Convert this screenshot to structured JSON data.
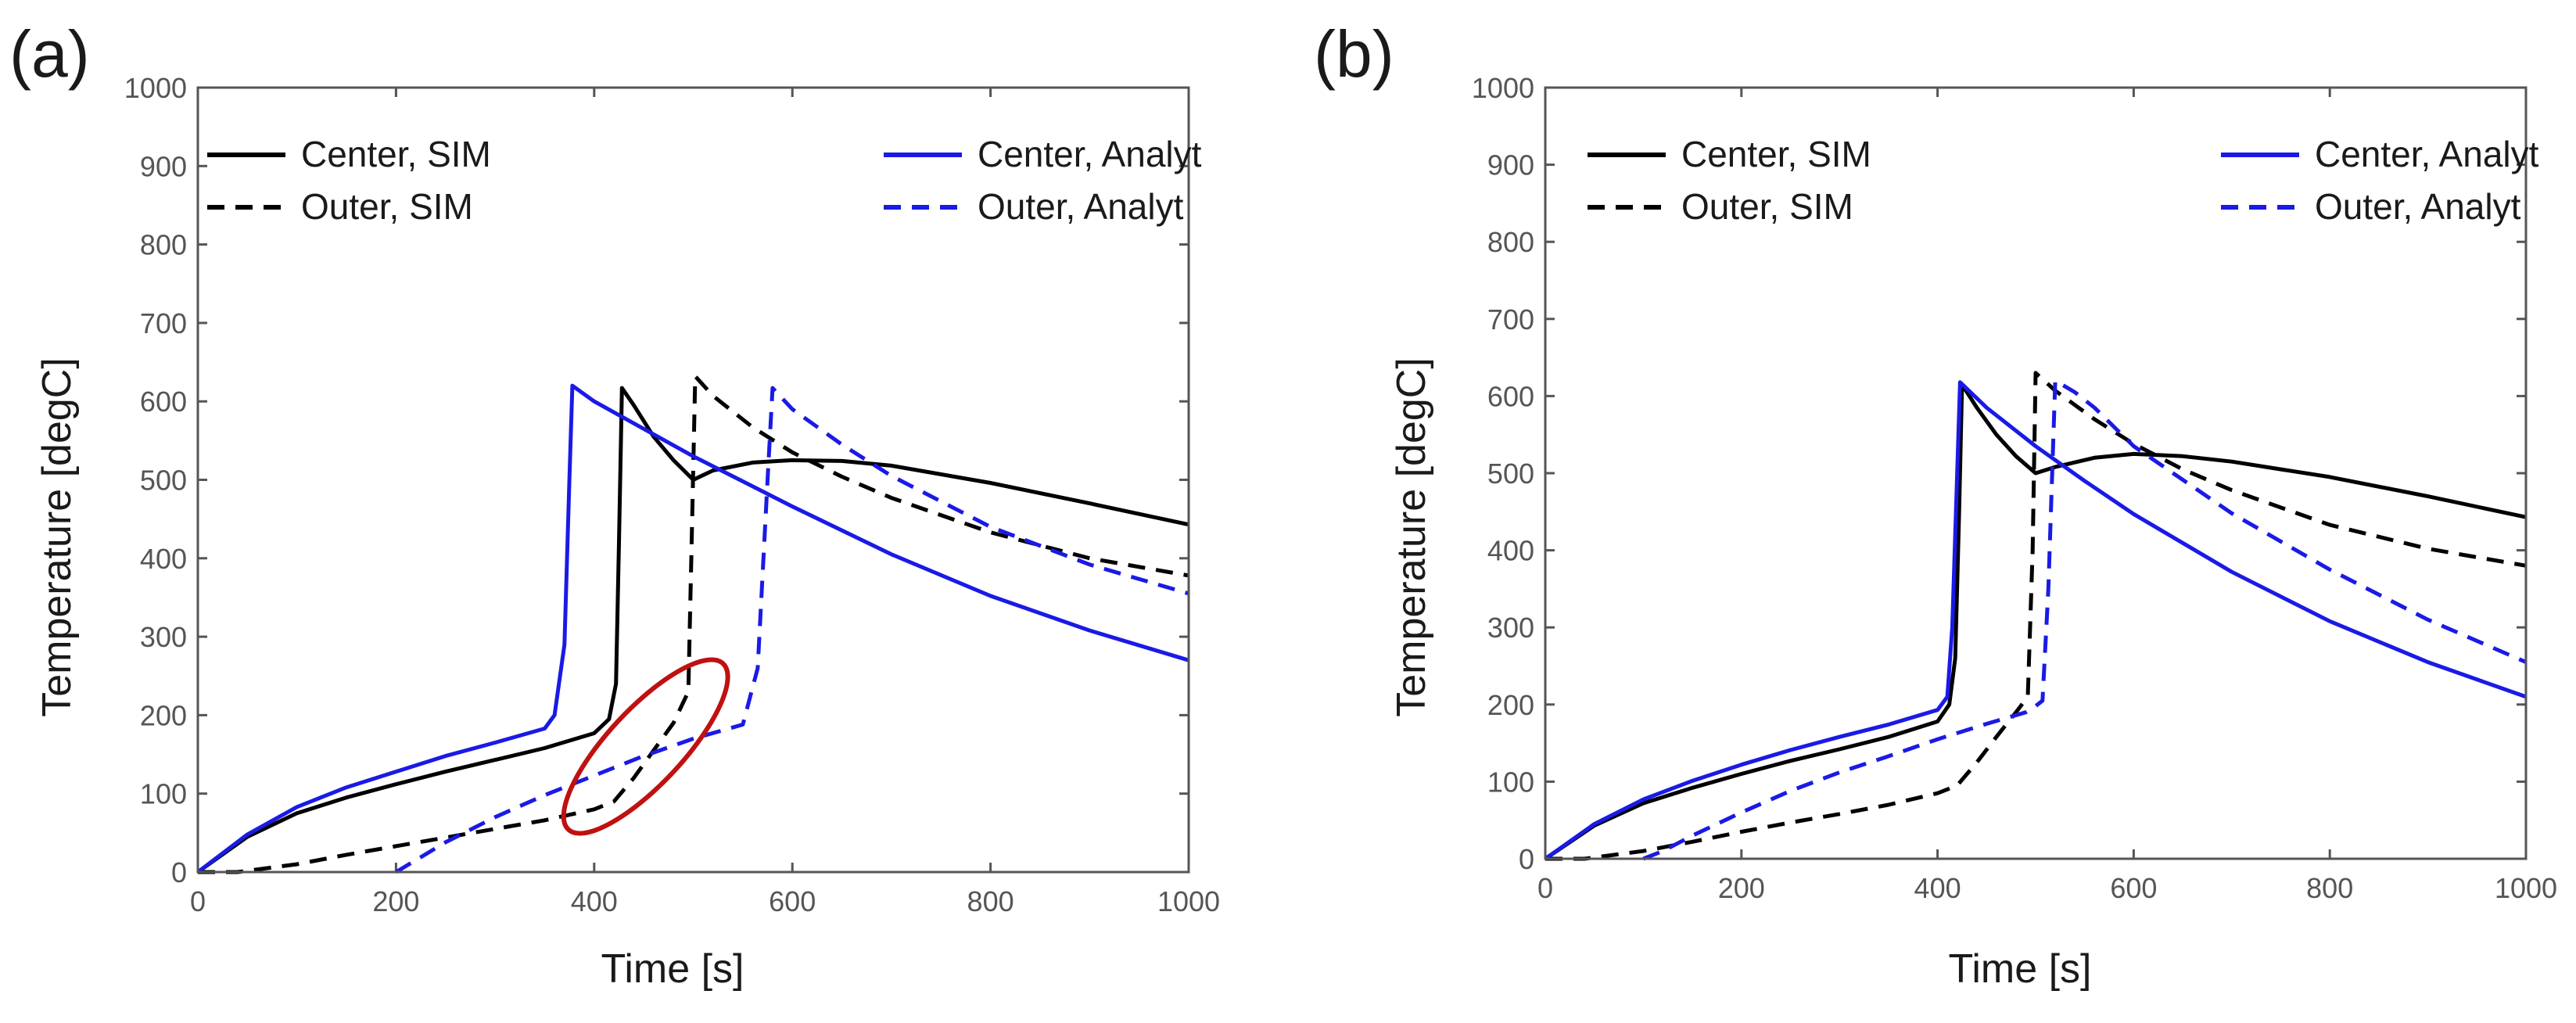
{
  "colors": {
    "sim": "#000000",
    "analyt": "#1a1ae6",
    "annotation": "#c01010",
    "axis": "#555555",
    "text": "#1a1a1a"
  },
  "chart_data": [
    {
      "panel_label": "(a)",
      "type": "line",
      "xlabel": "Time [s]",
      "ylabel": "Temperature [degC]",
      "xlim": [
        0,
        1000
      ],
      "ylim": [
        0,
        1000
      ],
      "x_ticks": [
        0,
        200,
        400,
        600,
        800,
        1000
      ],
      "y_ticks": [
        0,
        100,
        200,
        300,
        400,
        500,
        600,
        700,
        800,
        900,
        1000
      ],
      "legend_position": "top",
      "annotation": {
        "type": "ellipse",
        "center": [
          452,
          160
        ],
        "note": "red ellipse highlighting Outer, SIM vs Outer, Analyt deviation"
      },
      "series": [
        {
          "name": "Center, SIM",
          "style": "solid",
          "color": "sim",
          "x": [
            0,
            50,
            100,
            150,
            200,
            250,
            300,
            350,
            400,
            415,
            422,
            425,
            428,
            440,
            460,
            480,
            500,
            520,
            560,
            600,
            650,
            700,
            800,
            900,
            1000
          ],
          "y": [
            0,
            45,
            75,
            95,
            112,
            128,
            143,
            158,
            177,
            195,
            240,
            420,
            617,
            595,
            555,
            525,
            500,
            512,
            522,
            525,
            524,
            518,
            496,
            470,
            443
          ]
        },
        {
          "name": "Outer, SIM",
          "style": "dashed",
          "color": "sim",
          "x": [
            0,
            40,
            100,
            150,
            200,
            250,
            300,
            350,
            400,
            420,
            440,
            460,
            480,
            495,
            498,
            502,
            520,
            560,
            600,
            650,
            700,
            800,
            900,
            1000
          ],
          "y": [
            0,
            0,
            10,
            22,
            33,
            44,
            55,
            66,
            80,
            90,
            120,
            155,
            190,
            230,
            400,
            632,
            607,
            567,
            535,
            504,
            477,
            433,
            400,
            378
          ]
        },
        {
          "name": "Center, Analyt",
          "style": "solid",
          "color": "analyt",
          "x": [
            0,
            50,
            100,
            150,
            200,
            250,
            300,
            350,
            360,
            370,
            375,
            378,
            400,
            450,
            500,
            550,
            600,
            700,
            800,
            900,
            1000
          ],
          "y": [
            0,
            48,
            83,
            108,
            128,
            148,
            165,
            183,
            200,
            290,
            500,
            620,
            600,
            565,
            530,
            498,
            466,
            405,
            352,
            308,
            270
          ]
        },
        {
          "name": "Outer, Analyt",
          "style": "dashed",
          "color": "analyt",
          "x": [
            200,
            250,
            300,
            350,
            400,
            450,
            500,
            550,
            565,
            575,
            580,
            600,
            650,
            700,
            800,
            900,
            1000
          ],
          "y": [
            0,
            38,
            70,
            98,
            123,
            148,
            170,
            188,
            260,
            500,
            617,
            590,
            545,
            505,
            440,
            392,
            355
          ]
        }
      ]
    },
    {
      "panel_label": "(b)",
      "type": "line",
      "xlabel": "Time [s]",
      "ylabel": "Temperature [degC]",
      "xlim": [
        0,
        1000
      ],
      "ylim": [
        0,
        1000
      ],
      "x_ticks": [
        0,
        200,
        400,
        600,
        800,
        1000
      ],
      "y_ticks": [
        0,
        100,
        200,
        300,
        400,
        500,
        600,
        700,
        800,
        900,
        1000
      ],
      "legend_position": "top",
      "series": [
        {
          "name": "Center, SIM",
          "style": "solid",
          "color": "sim",
          "x": [
            0,
            50,
            100,
            150,
            200,
            250,
            300,
            350,
            400,
            412,
            418,
            422,
            425,
            440,
            460,
            480,
            500,
            520,
            560,
            600,
            650,
            700,
            800,
            900,
            1000
          ],
          "y": [
            0,
            43,
            72,
            92,
            110,
            127,
            142,
            158,
            178,
            200,
            260,
            450,
            615,
            585,
            550,
            522,
            500,
            508,
            520,
            525,
            522,
            515,
            495,
            470,
            443
          ]
        },
        {
          "name": "Outer, SIM",
          "style": "dashed",
          "color": "sim",
          "x": [
            0,
            40,
            100,
            150,
            200,
            250,
            300,
            350,
            400,
            420,
            440,
            460,
            480,
            492,
            497,
            500,
            520,
            560,
            600,
            650,
            700,
            800,
            900,
            1000
          ],
          "y": [
            0,
            0,
            10,
            22,
            35,
            47,
            58,
            70,
            85,
            95,
            125,
            158,
            190,
            210,
            400,
            630,
            607,
            570,
            538,
            505,
            478,
            433,
            402,
            380
          ]
        },
        {
          "name": "Center, Analyt",
          "style": "solid",
          "color": "analyt",
          "x": [
            0,
            50,
            100,
            150,
            200,
            250,
            300,
            350,
            400,
            410,
            415,
            420,
            423,
            450,
            500,
            550,
            600,
            700,
            800,
            900,
            1000
          ],
          "y": [
            0,
            45,
            77,
            101,
            122,
            141,
            158,
            174,
            193,
            210,
            300,
            500,
            618,
            585,
            535,
            490,
            447,
            372,
            308,
            255,
            210
          ]
        },
        {
          "name": "Outer, Analyt",
          "style": "dashed",
          "color": "analyt",
          "x": [
            100,
            120,
            150,
            200,
            250,
            300,
            350,
            400,
            450,
            490,
            500,
            507,
            513,
            520,
            540,
            560,
            600,
            700,
            800,
            900,
            1000
          ],
          "y": [
            0,
            10,
            30,
            60,
            88,
            112,
            133,
            155,
            175,
            190,
            198,
            205,
            350,
            620,
            605,
            585,
            535,
            448,
            375,
            310,
            255
          ]
        }
      ]
    }
  ]
}
